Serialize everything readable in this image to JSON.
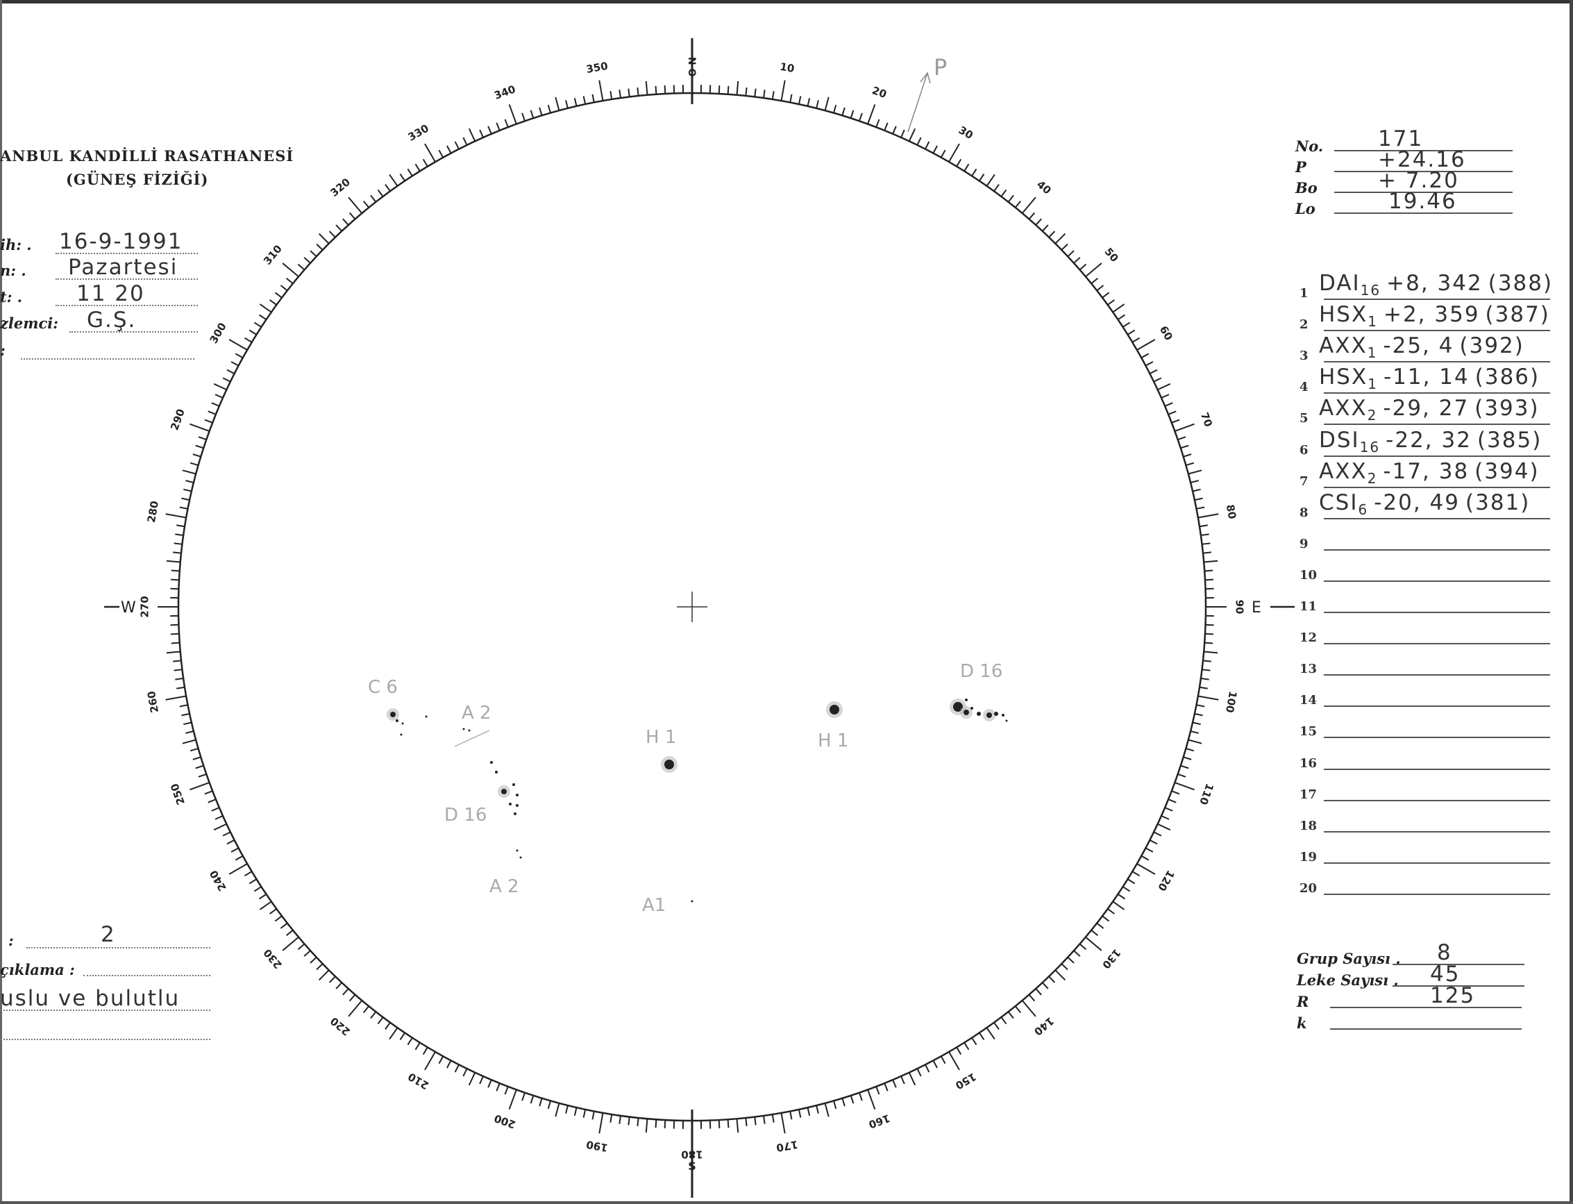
{
  "header": {
    "title": "ANBUL KANDİLLİ RASATHANESİ",
    "subtitle": "(GÜNEŞ FİZİĞİ)"
  },
  "left_fields": [
    {
      "label": "ih: .",
      "value": "16-9-1991"
    },
    {
      "label": "n: .",
      "value": "Pazartesi"
    },
    {
      "label": "t: .",
      "value": "11 20"
    },
    {
      "label": "zlemci:",
      "value": "G.Ş."
    },
    {
      "label": ":",
      "value": ""
    }
  ],
  "bottom_left": {
    "field_label": ":",
    "field_value": "2",
    "note_label": "çıklama :",
    "note_value": "uslu ve bulutlu"
  },
  "right_params": [
    {
      "label": "No.",
      "value": "171"
    },
    {
      "label": "P",
      "value": "+24.16"
    },
    {
      "label": "Bo",
      "value": "+ 7.20"
    },
    {
      "label": "Lo",
      "value": "19.46"
    }
  ],
  "groups": [
    {
      "n": "1",
      "cls": "DAI",
      "sub": "16",
      "coords": "+8, 342",
      "id": "(388)"
    },
    {
      "n": "2",
      "cls": "HSX",
      "sub": "1",
      "coords": "+2, 359",
      "id": "(387)"
    },
    {
      "n": "3",
      "cls": "AXX",
      "sub": "1",
      "coords": "-25, 4",
      "id": "(392)"
    },
    {
      "n": "4",
      "cls": "HSX",
      "sub": "1",
      "coords": "-11, 14",
      "id": "(386)"
    },
    {
      "n": "5",
      "cls": "AXX",
      "sub": "2",
      "coords": "-29, 27",
      "id": "(393)"
    },
    {
      "n": "6",
      "cls": "DSI",
      "sub": "16",
      "coords": "-22, 32",
      "id": "(385)"
    },
    {
      "n": "7",
      "cls": "AXX",
      "sub": "2",
      "coords": "-17, 38",
      "id": "(394)"
    },
    {
      "n": "8",
      "cls": "CSI",
      "sub": "6",
      "coords": "-20, 49",
      "id": "(381)"
    },
    {
      "n": "9"
    },
    {
      "n": "10"
    },
    {
      "n": "11"
    },
    {
      "n": "12"
    },
    {
      "n": "13"
    },
    {
      "n": "14"
    },
    {
      "n": "15"
    },
    {
      "n": "16"
    },
    {
      "n": "17"
    },
    {
      "n": "18"
    },
    {
      "n": "19"
    },
    {
      "n": "20"
    }
  ],
  "summary": [
    {
      "label": "Grup Sayısı .",
      "value": "8"
    },
    {
      "label": "Leke Sayısı .",
      "value": "45"
    },
    {
      "label": "R",
      "value": "125"
    },
    {
      "label": "k",
      "value": ""
    }
  ],
  "disk": {
    "north": "N O",
    "south": "S",
    "west": "W",
    "east": "E",
    "p_mark": "P",
    "scale_labels": [
      "10",
      "20",
      "30",
      "40",
      "50",
      "60",
      "70",
      "80",
      "90",
      "100",
      "110",
      "120",
      "130",
      "140",
      "150",
      "160",
      "170",
      "180",
      "190",
      "200",
      "210",
      "220",
      "230",
      "240",
      "250",
      "260",
      "270",
      "280",
      "290",
      "300",
      "310",
      "320",
      "330",
      "340",
      "350"
    ],
    "spot_labels": [
      "C 6",
      "A 2",
      "D 16",
      "A 2",
      "H 1",
      "A1",
      "H 1",
      "D 16"
    ]
  }
}
